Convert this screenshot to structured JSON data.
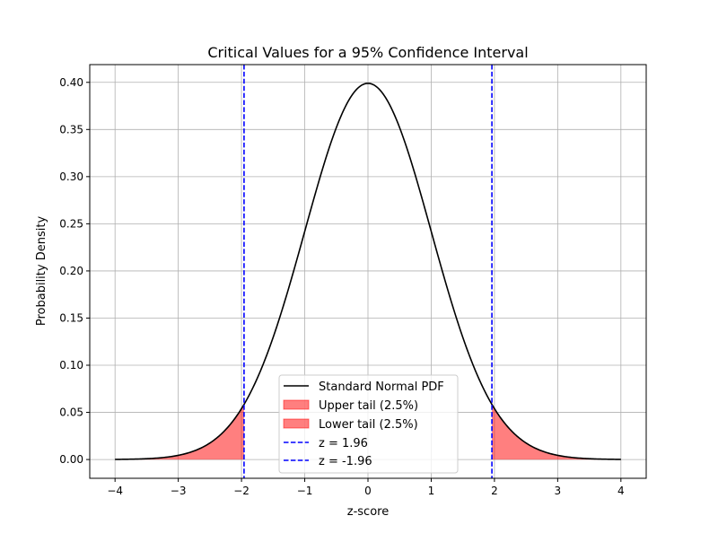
{
  "chart_data": {
    "type": "line",
    "title": "Critical Values for a 95% Confidence Interval",
    "xlabel": "z-score",
    "ylabel": "Probability Density",
    "xlim": [
      -4.4,
      4.4
    ],
    "ylim": [
      -0.0199,
      0.4188
    ],
    "grid": true,
    "legend_position": "bottom-center",
    "x_ticks": [
      -4,
      -3,
      -2,
      -1,
      0,
      1,
      2,
      3,
      4
    ],
    "x_tick_labels": [
      "−4",
      "−3",
      "−2",
      "−1",
      "0",
      "1",
      "2",
      "3",
      "4"
    ],
    "y_ticks": [
      0,
      0.05,
      0.1,
      0.15,
      0.2,
      0.25,
      0.3,
      0.35,
      0.4
    ],
    "y_tick_labels": [
      "0.00",
      "0.05",
      "0.10",
      "0.15",
      "0.20",
      "0.25",
      "0.30",
      "0.35",
      "0.40"
    ],
    "curve": {
      "name": "Standard Normal PDF",
      "distribution": "normal",
      "mean": 0,
      "sd": 1,
      "x_range": [
        -4,
        4
      ],
      "color": "#000000"
    },
    "fills": [
      {
        "name": "Upper tail (2.5%)",
        "from": 1.96,
        "to": 4,
        "color": "#ff0000",
        "alpha": 0.5
      },
      {
        "name": "Lower tail (2.5%)",
        "from": -4,
        "to": -1.96,
        "color": "#ff0000",
        "alpha": 0.5
      }
    ],
    "vlines": [
      {
        "name": "z = 1.96",
        "x": 1.96,
        "color": "#0000ff",
        "style": "dashed"
      },
      {
        "name": "z = -1.96",
        "x": -1.96,
        "color": "#0000ff",
        "style": "dashed"
      }
    ]
  }
}
